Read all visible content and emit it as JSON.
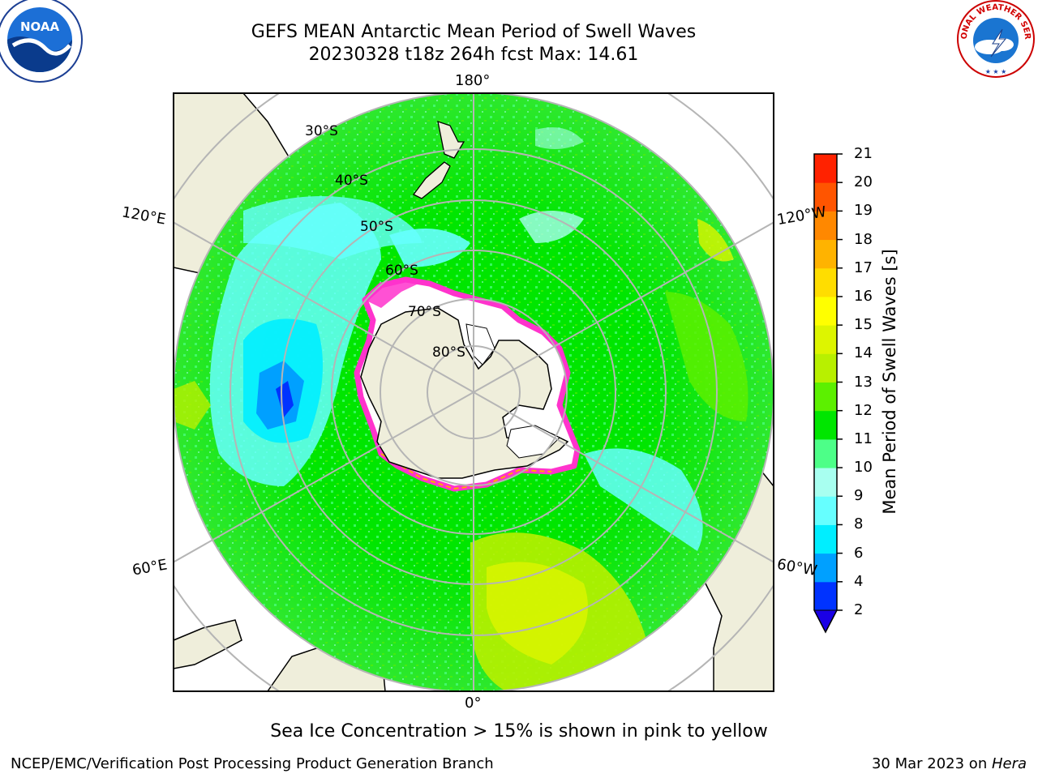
{
  "header": {
    "title_line1": "GEFS MEAN Antarctic Mean Period of Swell Waves",
    "title_line2": "20230328 t18z 264h fcst   Max: 14.61"
  },
  "map": {
    "projection": "south polar stereographic",
    "longitude_labels": {
      "top": "180°",
      "bottom": "0°",
      "upper_left": "120°E",
      "upper_right": "120°W",
      "lower_left": "60°E",
      "lower_right": "60°W"
    },
    "latitude_labels": [
      "30°S",
      "40°S",
      "50°S",
      "60°S",
      "70°S",
      "80°S"
    ],
    "colors": {
      "land": "#efeedb",
      "ice_edge": [
        "#ff33cc",
        "#ffaa00",
        "#ffee00"
      ],
      "grid": "#b5b5b5"
    }
  },
  "colorbar": {
    "label": "Mean Period of Swell Waves [s]",
    "ticks": [
      "2",
      "4",
      "6",
      "8",
      "9",
      "10",
      "11",
      "12",
      "13",
      "14",
      "15",
      "16",
      "17",
      "18",
      "19",
      "20",
      "21"
    ],
    "colors": [
      "#0033ff",
      "#00a0ff",
      "#00eeff",
      "#66ffff",
      "#a8fff0",
      "#4dff88",
      "#00e600",
      "#5cf000",
      "#b8f000",
      "#ddf500",
      "#ffff00",
      "#ffdd00",
      "#ffb300",
      "#ff8800",
      "#ff5500",
      "#ff2200",
      "#ff0000"
    ],
    "under_color": "#1a00e6"
  },
  "notes": {
    "sea_ice": "Sea Ice Concentration > 15% is shown in pink to yellow"
  },
  "footer": {
    "left": "NCEP/EMC/Verification Post Processing Product Generation Branch",
    "date": "30 Mar 2023 on ",
    "host": "Hera"
  },
  "logos": {
    "left": "NOAA",
    "right_text": "NATIONAL WEATHER SERVICE"
  }
}
